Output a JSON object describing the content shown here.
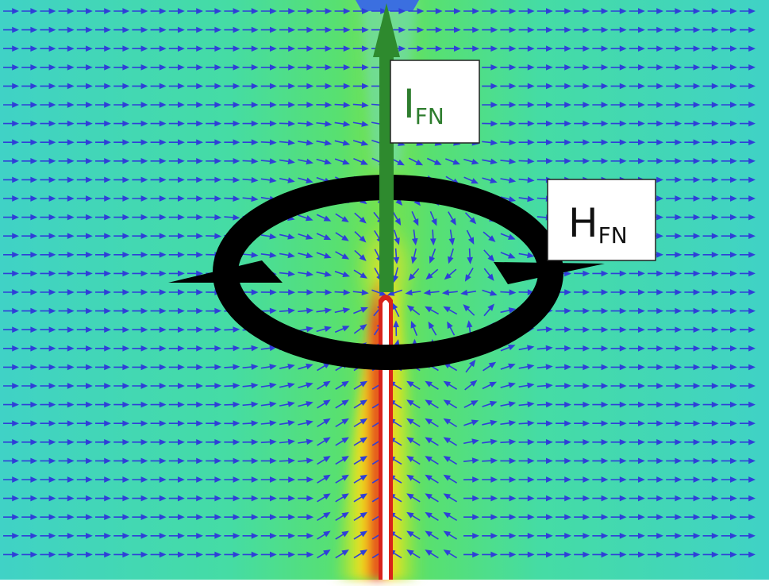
{
  "figure": {
    "current_label": {
      "main": "I",
      "sub": "FN"
    },
    "field_label": {
      "main": "H",
      "sub": "FN"
    }
  },
  "colors": {
    "background_far": "#3fd6c2",
    "background_mid": "#4fe07a",
    "field_near": "#8fe23a",
    "hot_yellow": "#f4e21a",
    "hot_orange": "#f08a1e",
    "hot_red": "#e0201a",
    "vector_arrows": "#2f3fd8",
    "current_arrow": "#2e8a2e",
    "field_loop": "#000000",
    "label_box_fill": "#ffffff",
    "label_box_stroke": "#222222",
    "current_label_color": "#2e7d2e",
    "field_label_color": "#111111"
  }
}
